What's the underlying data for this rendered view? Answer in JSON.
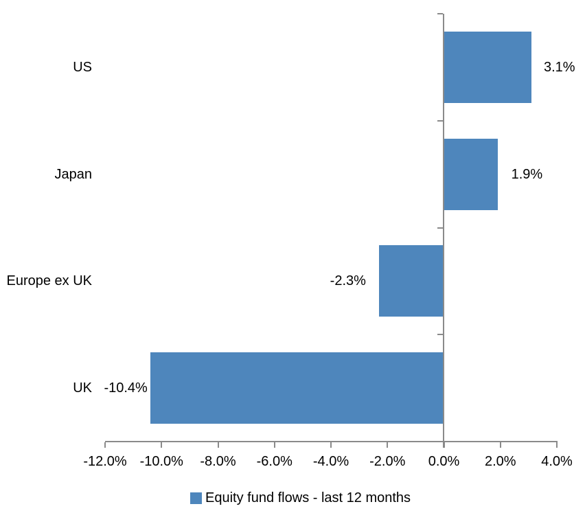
{
  "chart_data": {
    "type": "bar",
    "orientation": "horizontal",
    "title": "",
    "xlabel": "",
    "ylabel": "",
    "categories": [
      "US",
      "Japan",
      "Europe ex UK",
      "UK"
    ],
    "values": [
      3.1,
      1.9,
      -2.3,
      -10.4
    ],
    "data_labels": [
      "3.1%",
      "1.9%",
      "-2.3%",
      "-10.4%"
    ],
    "series_name": "Equity fund flows - last 12 months",
    "xlim": [
      -12,
      4
    ],
    "x_ticks": [
      -12,
      -10,
      -8,
      -6,
      -4,
      -2,
      0,
      2,
      4
    ],
    "x_tick_labels": [
      "-12.0%",
      "-10.0%",
      "-8.0%",
      "-6.0%",
      "-4.0%",
      "-2.0%",
      "0.0%",
      "2.0%",
      "4.0%"
    ],
    "grid": false,
    "legend_position": "bottom",
    "bar_color": "#4E86BC",
    "axis_color": "#8A8A8A",
    "text_color": "#000000",
    "background_color": "#FFFFFF"
  }
}
